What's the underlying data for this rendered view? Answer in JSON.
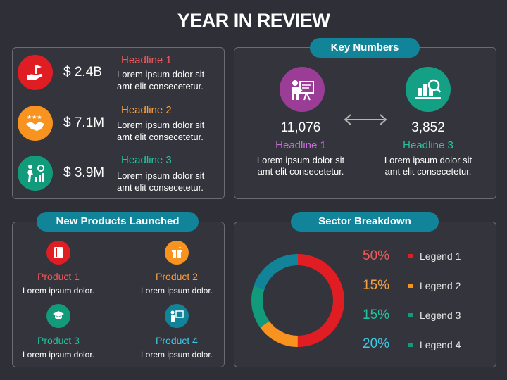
{
  "title": "YEAR IN REVIEW",
  "headlines": [
    {
      "value": "$ 2.4B",
      "headline": "Headline 1",
      "text1": "Lorem ipsum dolor sit",
      "text2": "amt elit consecetetur.",
      "color": "#e11d24",
      "icon": "hand-flag-icon"
    },
    {
      "value": "$ 7.1M",
      "headline": "Headline 2",
      "text1": "Lorem ipsum dolor sit",
      "text2": "amt elit consecetetur.",
      "color": "#f7931e",
      "icon": "handshake-icon"
    },
    {
      "value": "$ 3.9M",
      "headline": "Headline 3",
      "text1": "Lorem ipsum dolor sit",
      "text2": "amt elit consecetetur.",
      "color": "#129b7a",
      "icon": "growth-chart-icon"
    }
  ],
  "key_numbers": {
    "label": "Key Numbers",
    "left": {
      "value": "11,076",
      "headline": "Headline 1",
      "text1": "Lorem ipsum dolor sit",
      "text2": "amt elit consecetetur.",
      "color": "#9b3d97",
      "icon": "presentation-icon"
    },
    "right": {
      "value": "3,852",
      "headline": "Headline 3",
      "text1": "Lorem ipsum dolor sit",
      "text2": "amt elit consecetetur.",
      "color": "#14a085",
      "icon": "analytics-icon"
    }
  },
  "products": {
    "label": "New Products Launched",
    "items": [
      {
        "name": "Product 1",
        "text": "Lorem ipsum dolor.",
        "color": "#e11d24",
        "icon": "book-icon"
      },
      {
        "name": "Product 2",
        "text": "Lorem ipsum dolor.",
        "color": "#f7931e",
        "icon": "gift-icon"
      },
      {
        "name": "Product 3",
        "text": "Lorem ipsum dolor.",
        "color": "#129b7a",
        "icon": "graduation-icon"
      },
      {
        "name": "Product 4",
        "text": "Lorem ipsum dolor.",
        "color": "#12849a",
        "icon": "teacher-icon"
      }
    ]
  },
  "sector": {
    "label": "Sector Breakdown",
    "items": [
      {
        "pct": "50%",
        "legend": "Legend 1",
        "value": 50,
        "color": "#e11d24",
        "text_color": "#f05a5a"
      },
      {
        "pct": "15%",
        "legend": "Legend 2",
        "value": 15,
        "color": "#f7931e",
        "text_color": "#f7a040"
      },
      {
        "pct": "15%",
        "legend": "Legend 3",
        "value": 15,
        "color": "#129b7a",
        "text_color": "#22c3a0"
      },
      {
        "pct": "20%",
        "legend": "Legend 4",
        "value": 20,
        "color": "#12849a",
        "text_color": "#3cc8e6"
      }
    ]
  },
  "colors": {
    "background": "#2f2f37",
    "pill": "#12849a"
  }
}
